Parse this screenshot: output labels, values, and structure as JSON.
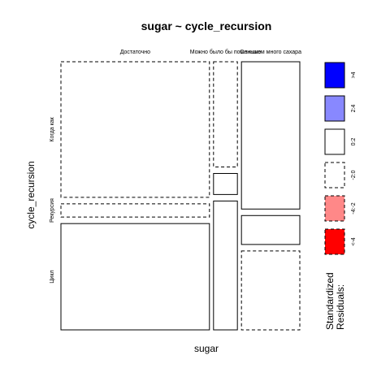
{
  "chart_data": {
    "type": "mosaic",
    "title": "sugar ~ cycle_recursion",
    "xlabel": "sugar",
    "ylabel": "cycle_recursion",
    "x_levels": [
      {
        "label": "Достаточно",
        "share": 0.56
      },
      {
        "label": "Можно было бы поменьше",
        "share": 0.09
      },
      {
        "label": "Слишком много сахара",
        "share": 0.22
      }
    ],
    "y_levels": [
      "Когда как",
      "Рекурсия",
      "Цикл"
    ],
    "cells": [
      {
        "x": "Достаточно",
        "y": "Когда как",
        "share": 0.51,
        "residual_class": "-2:0"
      },
      {
        "x": "Достаточно",
        "y": "Рекурсия",
        "share": 0.05,
        "residual_class": "-2:0"
      },
      {
        "x": "Достаточно",
        "y": "Цикл",
        "share": 0.4,
        "residual_class": "0:2"
      },
      {
        "x": "Можно было бы поменьше",
        "y": "Когда как",
        "share": 0.4,
        "residual_class": "-2:0"
      },
      {
        "x": "Можно было бы поменьше",
        "y": "Рекурсия",
        "share": 0.08,
        "residual_class": "0:2"
      },
      {
        "x": "Можно было бы поменьше",
        "y": "Цикл",
        "share": 0.49,
        "residual_class": "0:2"
      },
      {
        "x": "Слишком много сахара",
        "y": "Когда как",
        "share": 0.56,
        "residual_class": "0:2"
      },
      {
        "x": "Слишком много сахара",
        "y": "Рекурсия",
        "share": 0.11,
        "residual_class": "0:2"
      },
      {
        "x": "Слишком много сахара",
        "y": "Цикл",
        "share": 0.3,
        "residual_class": "-2:0"
      }
    ],
    "legend": {
      "title_lines": [
        "Standardized",
        "Residuals:"
      ],
      "position": "right",
      "items": [
        {
          "label": ">4",
          "fill": "#0000ff",
          "dashed": false
        },
        {
          "label": "2:4",
          "fill": "#8888ff",
          "dashed": false
        },
        {
          "label": "0:2",
          "fill": "#ffffff",
          "dashed": false
        },
        {
          "label": "-2:0",
          "fill": "#ffffff",
          "dashed": true
        },
        {
          "label": "-4:-2",
          "fill": "#ff8888",
          "dashed": true
        },
        {
          "label": "<-4",
          "fill": "#ff0000",
          "dashed": true
        }
      ]
    }
  }
}
